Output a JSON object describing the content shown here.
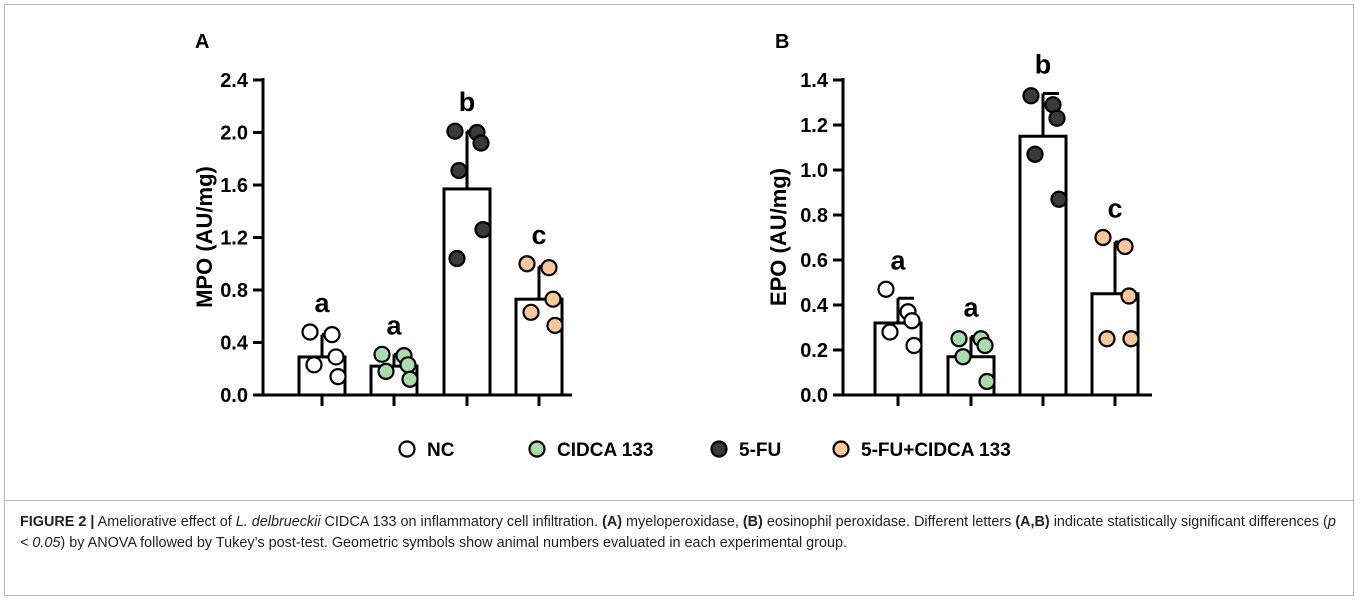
{
  "chart_data": [
    {
      "type": "bar",
      "panel_label": "A",
      "ylabel": "MPO (AU/mg)",
      "ylim": [
        0,
        2.4
      ],
      "yticks": [
        "0.0",
        "0.4",
        "0.8",
        "1.2",
        "1.6",
        "2.0",
        "2.4"
      ],
      "categories": [
        "NC",
        "CIDCA 133",
        "5-FU",
        "5-FU+CIDCA 133"
      ],
      "values": [
        0.29,
        0.22,
        1.57,
        0.73
      ],
      "error_upper": [
        0.46,
        0.31,
        2.01,
        0.98
      ],
      "letters": [
        "a",
        "a",
        "b",
        "c"
      ],
      "points": [
        [
          0.48,
          0.46,
          0.29,
          0.23,
          0.14
        ],
        [
          0.31,
          0.3,
          0.23,
          0.18,
          0.12
        ],
        [
          2.01,
          2.0,
          1.92,
          1.71,
          1.26,
          1.04
        ],
        [
          1.0,
          0.97,
          0.73,
          0.63,
          0.53
        ]
      ]
    },
    {
      "type": "bar",
      "panel_label": "B",
      "ylabel": "EPO (AU/mg)",
      "ylim": [
        0,
        1.4
      ],
      "yticks": [
        "0.0",
        "0.2",
        "0.4",
        "0.6",
        "0.8",
        "1.0",
        "1.2",
        "1.4"
      ],
      "categories": [
        "NC",
        "CIDCA 133",
        "5-FU",
        "5-FU+CIDCA 133"
      ],
      "values": [
        0.32,
        0.17,
        1.15,
        0.45
      ],
      "error_upper": [
        0.43,
        0.26,
        1.34,
        0.68
      ],
      "letters": [
        "a",
        "a",
        "b",
        "c"
      ],
      "points": [
        [
          0.47,
          0.37,
          0.33,
          0.28,
          0.22
        ],
        [
          0.25,
          0.25,
          0.22,
          0.17,
          0.06
        ],
        [
          1.33,
          1.29,
          1.23,
          1.07,
          0.87
        ],
        [
          0.7,
          0.66,
          0.44,
          0.25,
          0.25
        ]
      ]
    }
  ],
  "legend": [
    {
      "label": "NC",
      "color": "#ffffff"
    },
    {
      "label": "CIDCA 133",
      "color": "#a9dcab"
    },
    {
      "label": "5-FU",
      "color": "#3a3a3a"
    },
    {
      "label": "5-FU+CIDCA 133",
      "color": "#f8c79a"
    }
  ],
  "caption": {
    "label": "FIGURE 2 |",
    "t1": " Ameliorative effect of ",
    "species": "L. delbrueckii",
    "t2": " CIDCA 133 on inflammatory cell infiltration. ",
    "a": "(A)",
    "t3": " myeloperoxidase, ",
    "b": "(B)",
    "t4": " eosinophil peroxidase. Different letters ",
    "ab": "(A,B)",
    "t5": " indicate statistically significant differences (",
    "p": "p < 0.05",
    "t6": ") by ANOVA followed by Tukey’s post-test. Geometric symbols show animal numbers evaluated in each experimental group."
  }
}
